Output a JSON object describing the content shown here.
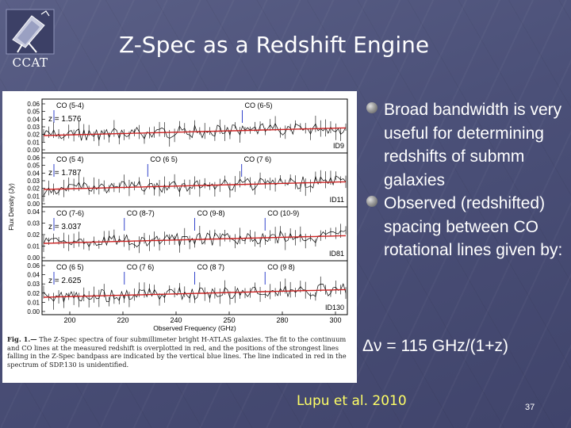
{
  "slide": {
    "title": "Z-Spec as a Redshift Engine",
    "logo_text": "CCAT",
    "bullets": [
      "Broad bandwidth is very useful for determining redshifts of submm galaxies",
      "Observed (redshifted) spacing between CO rotational lines given by:"
    ],
    "formula": "Δν = 115 GHz/(1+z)",
    "citation": "Lupu et al. 2010",
    "page_number": "37"
  },
  "figure": {
    "ylabel": "Flux Density (Jy)",
    "xlabel": "Observed Frequency (GHz)",
    "x_ticks": [
      "200",
      "220",
      "240",
      "250",
      "280",
      "300"
    ],
    "caption_lead": "Fig. 1.—",
    "caption": "The Z-Spec spectra of four submillimeter bright H-ATLAS galaxies. The fit to the continuum and CO lines at the measured redshift is overplotted in red, and the positions of the strongest lines falling in the Z-Spec bandpass are indicated by the vertical blue lines. The line indicated in red in the spectrum of SDP.130 is unidentified.",
    "panels": [
      {
        "z_label": "z = 1.576",
        "id": "ID9",
        "lines": [
          "CO (5-4)",
          "CO (6-5)"
        ],
        "yticks": [
          "0.06",
          "0.05",
          "0.04",
          "0.03",
          "0.02",
          "0.01",
          "0.00"
        ]
      },
      {
        "z_label": "z = 1.787",
        "id": "ID11",
        "lines": [
          "CO (5 4)",
          "CO (6 5)",
          "CO (7 6)"
        ],
        "yticks": [
          "0.06",
          "0.05",
          "0.04",
          "0.03",
          "0.02",
          "0.01",
          "0.00"
        ]
      },
      {
        "z_label": "z = 3.037",
        "id": "ID81",
        "lines": [
          "CO (7-6)",
          "CO (8-7)",
          "CO (9-8)",
          "CO (10-9)"
        ],
        "yticks": [
          "0.04",
          "0.03",
          "0.02",
          "0.01",
          "0.00"
        ]
      },
      {
        "z_label": "z = 2.625",
        "id": "ID130",
        "lines": [
          "CO (6 5)",
          "CO (7 6)",
          "CO (8 7)",
          "CO (9 8)"
        ],
        "yticks": [
          "0.06",
          "0.04",
          "0.03",
          "0.02",
          "0.01",
          "0.00"
        ]
      }
    ]
  },
  "colors": {
    "background": "#4b5078",
    "citation": "#ffff66",
    "fit_line": "#cc2222",
    "co_marker": "#3344cc"
  }
}
